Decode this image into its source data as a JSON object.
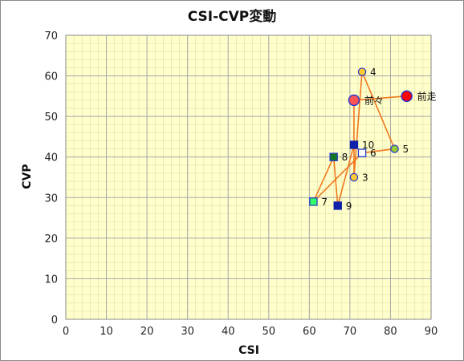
{
  "chart_data": {
    "type": "scatter",
    "title": "CSI-CVP変動",
    "xlabel": "CSI",
    "ylabel": "CVP",
    "xlim": [
      0,
      90
    ],
    "ylim": [
      0,
      70
    ],
    "xticks": [
      "0",
      "10",
      "20",
      "30",
      "40",
      "50",
      "60",
      "70",
      "80",
      "90"
    ],
    "yticks": [
      "0",
      "10",
      "20",
      "30",
      "40",
      "50",
      "60",
      "70"
    ],
    "grid": true,
    "line_color": "#f07820",
    "plot_background": "#ffffcc",
    "points": [
      {
        "label": "前走",
        "x": 84,
        "y": 55,
        "shape": "circle-large",
        "fill": "#ff0000",
        "stroke": "#2233cc"
      },
      {
        "label": "前々",
        "x": 71,
        "y": 54,
        "shape": "circle-large",
        "fill": "#ff5555",
        "stroke": "#2233cc"
      },
      {
        "label": "3",
        "x": 71,
        "y": 35,
        "shape": "circle",
        "fill": "#ffcc33",
        "stroke": "#2233cc"
      },
      {
        "label": "4",
        "x": 73,
        "y": 61,
        "shape": "circle",
        "fill": "#ffcc33",
        "stroke": "#2233cc"
      },
      {
        "label": "5",
        "x": 81,
        "y": 42,
        "shape": "circle",
        "fill": "#99cc33",
        "stroke": "#2233cc"
      },
      {
        "label": "6",
        "x": 73,
        "y": 41,
        "shape": "square",
        "fill": "#ffffff",
        "stroke": "#2233cc"
      },
      {
        "label": "7",
        "x": 61,
        "y": 29,
        "shape": "square",
        "fill": "#33ff66",
        "stroke": "#2233cc"
      },
      {
        "label": "8",
        "x": 66,
        "y": 40,
        "shape": "square",
        "fill": "#117722",
        "stroke": "#2233cc"
      },
      {
        "label": "9",
        "x": 67,
        "y": 28,
        "shape": "square",
        "fill": "#1122aa",
        "stroke": "#1122aa"
      },
      {
        "label": "10",
        "x": 71,
        "y": 43,
        "shape": "square",
        "fill": "#1122aa",
        "stroke": "#1122aa"
      }
    ]
  }
}
